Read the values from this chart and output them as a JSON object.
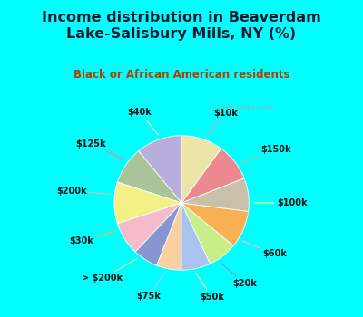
{
  "title": "Income distribution in Beaverdam\nLake-Salisbury Mills, NY (%)",
  "subtitle": "Black or African American residents",
  "labels": [
    "$10k",
    "$150k",
    "$100k",
    "$60k",
    "$20k",
    "$50k",
    "$75k",
    "> $200k",
    "$30k",
    "$200k",
    "$125k",
    "$40k"
  ],
  "values": [
    11,
    9,
    10,
    8,
    6,
    6,
    7,
    7,
    9,
    8,
    9,
    10
  ],
  "colors": [
    "#b8aedd",
    "#aac49a",
    "#f5ef88",
    "#f4bcca",
    "#8895d0",
    "#fad0a0",
    "#a8c4ee",
    "#c8ee88",
    "#f9b055",
    "#c8c0a8",
    "#eb8890",
    "#ede4a8"
  ],
  "bg_color": "#00ffff",
  "chart_bg_top": "#e8f8f4",
  "chart_bg_bottom": "#d8f0e8",
  "title_color": "#1a1a2e",
  "subtitle_color": "#b04000",
  "watermark": " City-Data.com",
  "startangle": 90,
  "label_fontsize": 7,
  "title_fontsize": 11.5,
  "subtitle_fontsize": 8.5
}
